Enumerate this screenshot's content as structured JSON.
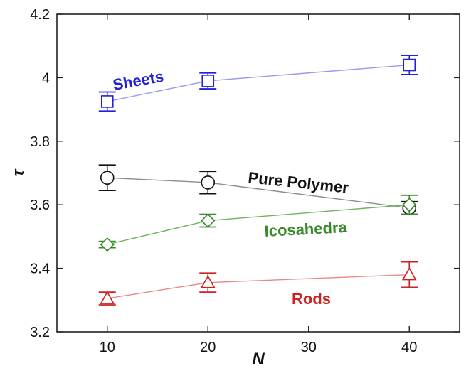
{
  "chart_data": {
    "type": "line",
    "x": [
      10,
      20,
      40
    ],
    "xlabel": "N",
    "ylabel": "τ",
    "xlim": [
      5,
      45
    ],
    "ylim": [
      3.2,
      4.2
    ],
    "xticks": [
      10,
      20,
      30,
      40
    ],
    "yticks": [
      3.2,
      3.4,
      3.6,
      3.8,
      4.0,
      4.2
    ],
    "ytick_labels": [
      "3.2",
      "3.4",
      "3.6",
      "3.8",
      "4",
      "4.2"
    ],
    "grid": false,
    "legend": "none",
    "series": [
      {
        "name": "Sheets",
        "marker": "square",
        "color": "#2222dd",
        "line_color": "#9a9af0",
        "values": [
          3.925,
          3.99,
          4.04
        ],
        "errors": [
          0.03,
          0.025,
          0.03
        ]
      },
      {
        "name": "Pure Polymer",
        "marker": "circle",
        "color": "#111111",
        "line_color": "#8c8c8c",
        "values": [
          3.685,
          3.67,
          3.59
        ],
        "errors": [
          0.04,
          0.035,
          0.02
        ]
      },
      {
        "name": "Icosahedra",
        "marker": "diamond",
        "color": "#3a8a2a",
        "line_color": "#6fb35f",
        "values": [
          3.475,
          3.55,
          3.6
        ],
        "errors": [
          0.01,
          0.02,
          0.03
        ]
      },
      {
        "name": "Rods",
        "marker": "triangle",
        "color": "#cc2222",
        "line_color": "#e88888",
        "values": [
          3.305,
          3.355,
          3.38
        ],
        "errors": [
          0.02,
          0.03,
          0.04
        ]
      }
    ]
  }
}
